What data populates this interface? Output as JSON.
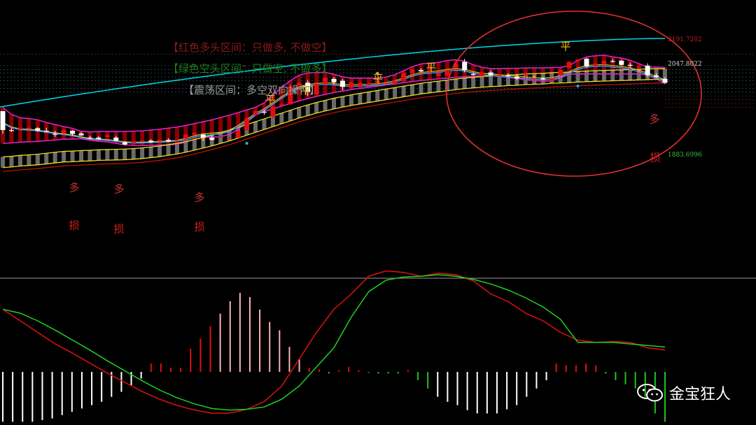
{
  "zone_labels": [
    {
      "text": "【红色多头区间：只做多, 不做空】",
      "color": "#8b1a1a"
    },
    {
      "text": "【绿色空头区间：只做空, 不做多】",
      "color": "#1f7a1f"
    },
    {
      "text": "【震荡区间：多空双向操作】",
      "color": "#9a9a9a"
    }
  ],
  "price_tags": [
    {
      "text": "2191.7202",
      "color": "#c81e1e"
    },
    {
      "text": "2047.8022",
      "color": "#d0d0d0"
    },
    {
      "text": "1883.6996",
      "color": "#39c639"
    }
  ],
  "signals": [
    {
      "text": "多",
      "color": "#c83232"
    },
    {
      "text": "损",
      "color": "#d22020"
    },
    {
      "text": "多",
      "color": "#c83232"
    },
    {
      "text": "损",
      "color": "#d22020"
    },
    {
      "text": "多",
      "color": "#c83232"
    },
    {
      "text": "损",
      "color": "#d22020"
    },
    {
      "text": "平",
      "color": "#f0c020"
    },
    {
      "text": "平",
      "color": "#f0c020"
    },
    {
      "text": "平",
      "color": "#f0c020"
    },
    {
      "text": "平",
      "color": "#f0c020"
    },
    {
      "text": "平",
      "color": "#f0c020"
    },
    {
      "text": "多",
      "color": "#c83232"
    },
    {
      "text": "损",
      "color": "#d22020"
    }
  ],
  "watermark": {
    "text": "金宝狂人",
    "icon": "wechat-icon"
  },
  "colors": {
    "up": "#e01010",
    "down": "#ffffff",
    "band_red": "#8b0000",
    "band_grey": "#6a6a6a",
    "cyan": "#00d8e8",
    "magenta": "#e020c0",
    "yellow": "#e8e020",
    "ma_yellow": "#e0b020",
    "ma_blue": "#3aa0ff",
    "dif": "#e01010",
    "dea": "#20d020",
    "ellipse": "#e03030"
  },
  "chart_data": [
    {
      "type": "candlestick",
      "candles": [
        [
          2000,
          2000,
          1940,
          1950
        ],
        [
          1950,
          1955,
          1945,
          1948
        ],
        [
          1952,
          1957,
          1948,
          1955
        ],
        [
          1955,
          1960,
          1950,
          1956
        ],
        [
          1955,
          1958,
          1945,
          1948
        ],
        [
          1948,
          1956,
          1945,
          1946
        ],
        [
          1940,
          1948,
          1932,
          1938
        ],
        [
          1942,
          1952,
          1938,
          1950
        ],
        [
          1948,
          1950,
          1935,
          1940
        ],
        [
          1941,
          1945,
          1935,
          1936
        ],
        [
          1930,
          1935,
          1926,
          1928
        ],
        [
          1930,
          1934,
          1925,
          1926
        ],
        [
          1932,
          1938,
          1930,
          1936
        ],
        [
          1930,
          1935,
          1920,
          1922
        ],
        [
          1918,
          1920,
          1910,
          1912
        ],
        [
          1916,
          1922,
          1913,
          1920
        ],
        [
          1921,
          1925,
          1918,
          1922
        ],
        [
          1922,
          1926,
          1916,
          1918
        ],
        [
          1920,
          1925,
          1916,
          1924
        ],
        [
          1924,
          1928,
          1918,
          1920
        ],
        [
          1922,
          1926,
          1920,
          1924
        ],
        [
          1927,
          1940,
          1926,
          1938
        ],
        [
          1938,
          1945,
          1935,
          1942
        ],
        [
          1938,
          1940,
          1928,
          1930
        ],
        [
          1930,
          1935,
          1922,
          1924
        ],
        [
          1932,
          1935,
          1928,
          1934
        ],
        [
          1928,
          1935,
          1925,
          1930
        ],
        [
          1930,
          1950,
          1928,
          1948
        ],
        [
          1950,
          1985,
          1948,
          1980
        ],
        [
          1990,
          2002,
          1988,
          2000
        ],
        [
          1998,
          2003,
          1990,
          1996
        ],
        [
          1985,
          2015,
          1982,
          2012
        ],
        [
          2015,
          2022,
          2010,
          2018
        ],
        [
          2018,
          2072,
          2015,
          2064
        ],
        [
          2068,
          2078,
          2066,
          2074
        ],
        [
          2075,
          2082,
          2040,
          2050
        ],
        [
          2044,
          2074,
          2042,
          2070
        ],
        [
          2072,
          2090,
          2068,
          2088
        ],
        [
          2085,
          2090,
          2070,
          2076
        ],
        [
          2080,
          2085,
          2055,
          2064
        ],
        [
          2062,
          2080,
          2058,
          2076
        ],
        [
          2066,
          2078,
          2064,
          2074
        ],
        [
          2070,
          2076,
          2066,
          2072
        ],
        [
          2075,
          2082,
          2072,
          2080
        ],
        [
          2072,
          2078,
          2068,
          2074
        ],
        [
          2072,
          2085,
          2068,
          2080
        ],
        [
          2080,
          2105,
          2078,
          2101
        ],
        [
          2100,
          2112,
          2096,
          2110
        ],
        [
          2108,
          2113,
          2103,
          2105
        ],
        [
          2104,
          2110,
          2100,
          2108
        ],
        [
          2093,
          2103,
          2090,
          2100
        ],
        [
          2094,
          2110,
          2092,
          2108
        ],
        [
          2115,
          2128,
          2112,
          2125
        ],
        [
          2130,
          2138,
          2102,
          2108
        ],
        [
          2098,
          2102,
          2093,
          2096
        ],
        [
          2092,
          2105,
          2090,
          2102
        ],
        [
          2102,
          2108,
          2092,
          2095
        ],
        [
          2093,
          2098,
          2088,
          2096
        ],
        [
          2094,
          2100,
          2090,
          2092
        ],
        [
          2090,
          2096,
          2082,
          2086
        ],
        [
          2094,
          2102,
          2084,
          2098
        ],
        [
          2084,
          2094,
          2080,
          2088
        ],
        [
          2086,
          2090,
          2082,
          2084
        ],
        [
          2080,
          2088,
          2078,
          2086
        ],
        [
          2094,
          2112,
          2092,
          2109
        ],
        [
          2114,
          2133,
          2112,
          2130
        ],
        [
          2133,
          2138,
          2130,
          2136
        ],
        [
          2138,
          2140,
          2115,
          2118
        ],
        [
          2120,
          2128,
          2117,
          2125
        ],
        [
          2123,
          2135,
          2120,
          2132
        ],
        [
          2132,
          2138,
          2128,
          2130
        ],
        [
          2133,
          2136,
          2120,
          2122
        ],
        [
          2122,
          2128,
          2115,
          2120
        ],
        [
          2115,
          2122,
          2110,
          2118
        ],
        [
          2120,
          2126,
          2090,
          2095
        ],
        [
          2094,
          2100,
          2088,
          2090
        ],
        [
          2085,
          2090,
          2072,
          2075
        ]
      ],
      "ma_fast": [
        1970,
        1958,
        1953,
        1952,
        1950,
        1946,
        1943,
        1940,
        1937,
        1932,
        1928,
        1926,
        1925,
        1922,
        1919,
        1918,
        1918,
        1919,
        1920,
        1921,
        1923,
        1928,
        1935,
        1940,
        1942,
        1944,
        1950,
        1962,
        1978,
        1994,
        2006,
        2022,
        2038,
        2052,
        2064,
        2070,
        2073,
        2075,
        2073,
        2070,
        2069,
        2070,
        2071,
        2072,
        2075,
        2080,
        2088,
        2096,
        2102,
        2104,
        2106,
        2110,
        2112,
        2110,
        2104,
        2100,
        2098,
        2096,
        2094,
        2092,
        2090,
        2088,
        2087,
        2088,
        2094,
        2104,
        2114,
        2120,
        2122,
        2123,
        2120,
        2118,
        2114,
        2108,
        2100,
        2092,
        2082
      ],
      "ma_slow": [
        1919,
        1920,
        1922,
        1923,
        1924,
        1926,
        1928,
        1930,
        1930,
        1931,
        1931,
        1932,
        1932,
        1932,
        1932,
        1933,
        1934,
        1936,
        1938,
        1941,
        1944,
        1948,
        1953,
        1958,
        1963,
        1969,
        1975,
        1982,
        1989,
        1996,
        2003,
        2010,
        2017,
        2024,
        2031,
        2037,
        2043,
        2048,
        2053,
        2057,
        2061,
        2064,
        2067,
        2070,
        2073,
        2076,
        2079,
        2082,
        2085,
        2087,
        2089,
        2091,
        2093,
        2095,
        2096,
        2097,
        2098,
        2098,
        2099,
        2099,
        2100,
        2100,
        2100,
        2101,
        2101,
        2101,
        2102,
        2102,
        2102,
        2102,
        2102,
        2102,
        2102,
        2102,
        2102,
        2102,
        2101
      ],
      "channel_upper": [
        2040,
        2046,
        2052,
        2058,
        2064,
        2070,
        2076,
        2082,
        2088,
        2094,
        2100,
        2106,
        2112,
        2118,
        2124,
        2130,
        2136,
        2142,
        2148,
        2154,
        2160,
        2166,
        2172,
        2178,
        2184,
        2190,
        2192,
        2192,
        2191
      ],
      "price_tags": [
        2191.7202,
        2047.8022,
        1883.6996
      ]
    },
    {
      "type": "macd",
      "dif": [
        0.45,
        0.3,
        0.15,
        0.0,
        -0.12,
        -0.25,
        -0.38,
        -0.5,
        -0.62,
        -0.72,
        -0.8,
        -0.86,
        -0.9,
        -0.9,
        -0.85,
        -0.75,
        -0.55,
        -0.2,
        0.15,
        0.45,
        0.65,
        0.88,
        0.95,
        0.93,
        0.88,
        0.92,
        0.9,
        0.82,
        0.65,
        0.55,
        0.4,
        0.3,
        0.15,
        0.05,
        0.02,
        0.03,
        0.02,
        -0.05,
        -0.08
      ],
      "dea": [
        0.45,
        0.4,
        0.3,
        0.18,
        0.05,
        -0.08,
        -0.22,
        -0.35,
        -0.48,
        -0.6,
        -0.7,
        -0.78,
        -0.84,
        -0.86,
        -0.85,
        -0.82,
        -0.72,
        -0.55,
        -0.3,
        -0.05,
        0.35,
        0.68,
        0.83,
        0.87,
        0.88,
        0.9,
        0.88,
        0.84,
        0.78,
        0.7,
        0.6,
        0.48,
        0.32,
        0.02,
        0.02,
        0.02,
        0.0,
        -0.02,
        -0.04
      ],
      "hist": [
        -0.6,
        -0.6,
        -0.6,
        -0.6,
        -0.58,
        -0.56,
        -0.52,
        -0.48,
        -0.44,
        -0.4,
        -0.36,
        -0.3,
        -0.24,
        -0.16,
        -0.08,
        0.1,
        0.1,
        0.05,
        0.05,
        0.28,
        0.4,
        0.55,
        0.7,
        0.85,
        0.95,
        0.9,
        0.75,
        0.6,
        0.5,
        0.3,
        0.15,
        0.05,
        0.03,
        -0.02,
        0.02,
        0.06,
        0.02,
        -0.01,
        -0.02,
        -0.02,
        -0.02,
        0.02,
        -0.1,
        -0.2,
        -0.3,
        -0.36,
        -0.4,
        -0.46,
        -0.5,
        -0.5,
        -0.5,
        -0.45,
        -0.4,
        -0.3,
        -0.2,
        -0.1,
        0.1,
        0.08,
        0.08,
        0.1,
        0.08,
        -0.02,
        -0.1,
        -0.15,
        -0.2,
        -0.3,
        -0.5,
        -0.6
      ]
    }
  ]
}
